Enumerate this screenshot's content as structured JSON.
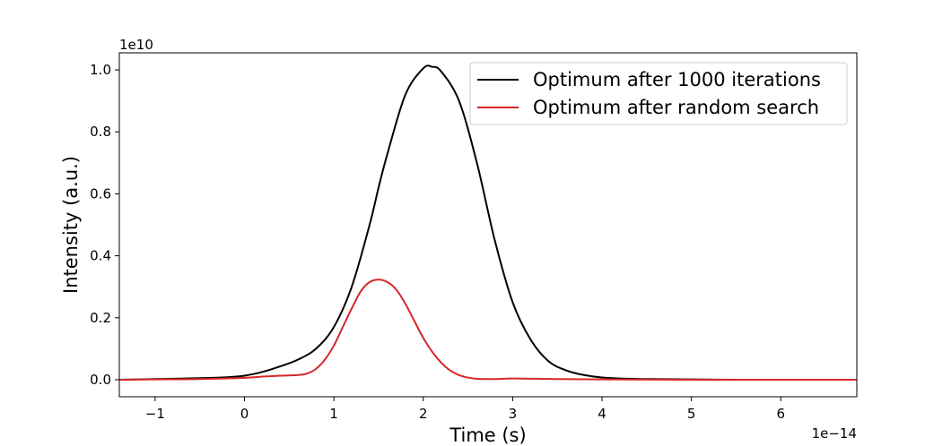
{
  "chart_data": {
    "type": "line",
    "title": "",
    "xlabel": "Time (s)",
    "ylabel": "Intensity (a.u.)",
    "x_multiplier_label": "1e−14",
    "y_multiplier_label": "1e10",
    "xlim": [
      -1.4,
      6.85
    ],
    "ylim": [
      -0.055,
      1.055
    ],
    "x_ticks": [
      -1,
      0,
      1,
      2,
      3,
      4,
      5,
      6
    ],
    "x_tick_labels": [
      "−1",
      "0",
      "1",
      "2",
      "3",
      "4",
      "5",
      "6"
    ],
    "y_ticks": [
      0.0,
      0.2,
      0.4,
      0.6,
      0.8,
      1.0
    ],
    "y_tick_labels": [
      "0.0",
      "0.2",
      "0.4",
      "0.6",
      "0.8",
      "1.0"
    ],
    "grid": false,
    "legend_position": "top-right",
    "series": [
      {
        "name": "Optimum after 1000 iterations",
        "color": "#000000",
        "x": [
          -1.4,
          -1.0,
          -0.5,
          -0.2,
          0.0,
          0.2,
          0.4,
          0.6,
          0.8,
          1.0,
          1.2,
          1.4,
          1.5,
          1.6,
          1.8,
          2.0,
          2.1,
          2.2,
          2.4,
          2.6,
          2.8,
          3.0,
          3.2,
          3.4,
          3.6,
          3.8,
          4.0,
          4.2,
          4.5,
          5.0,
          5.5,
          6.0,
          6.85
        ],
        "y": [
          0.0,
          0.002,
          0.005,
          0.008,
          0.013,
          0.025,
          0.043,
          0.065,
          0.1,
          0.17,
          0.3,
          0.5,
          0.62,
          0.73,
          0.92,
          1.005,
          1.01,
          0.995,
          0.9,
          0.7,
          0.45,
          0.25,
          0.13,
          0.06,
          0.03,
          0.015,
          0.007,
          0.004,
          0.002,
          0.001,
          0.0,
          0.0,
          0.0
        ]
      },
      {
        "name": "Optimum after random search",
        "color": "#d62728",
        "x": [
          -1.4,
          -1.0,
          -0.5,
          0.0,
          0.2,
          0.4,
          0.6,
          0.7,
          0.8,
          0.9,
          1.0,
          1.1,
          1.2,
          1.3,
          1.4,
          1.5,
          1.6,
          1.7,
          1.8,
          1.9,
          2.0,
          2.1,
          2.2,
          2.3,
          2.4,
          2.5,
          2.6,
          2.8,
          3.0,
          3.5,
          4.0,
          5.0,
          6.85
        ],
        "y": [
          0.0,
          0.001,
          0.002,
          0.006,
          0.01,
          0.013,
          0.015,
          0.02,
          0.035,
          0.065,
          0.11,
          0.17,
          0.23,
          0.285,
          0.315,
          0.323,
          0.315,
          0.29,
          0.245,
          0.19,
          0.135,
          0.09,
          0.055,
          0.03,
          0.015,
          0.007,
          0.003,
          0.002,
          0.004,
          0.002,
          0.001,
          0.0,
          0.0
        ]
      }
    ]
  }
}
